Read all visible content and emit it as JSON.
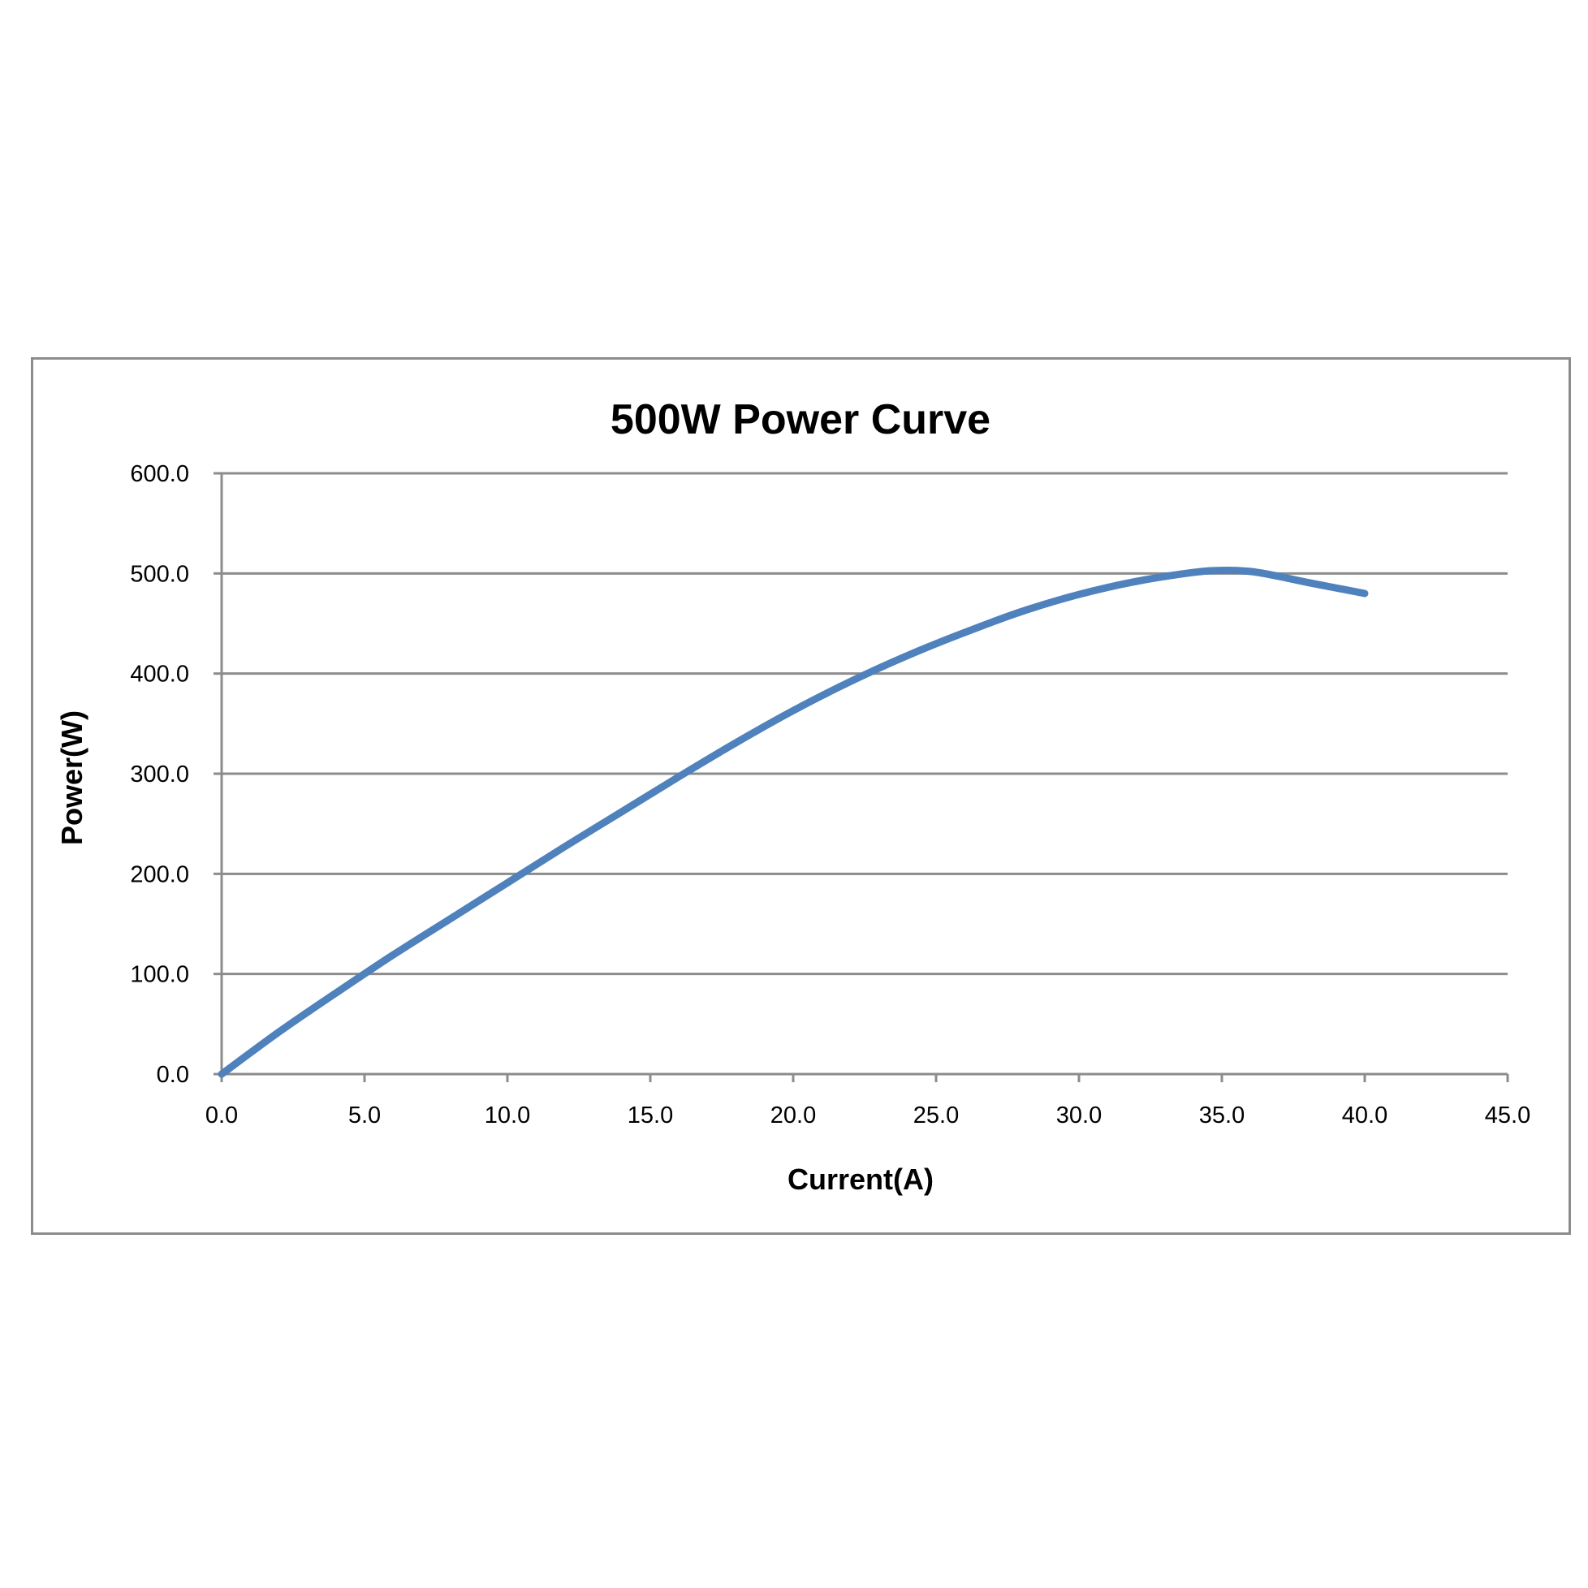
{
  "chart_data": {
    "type": "line",
    "title": "500W Power Curve",
    "xlabel": "Current(A)",
    "ylabel": "Power(W)",
    "xlim": [
      0,
      45
    ],
    "ylim": [
      0,
      600
    ],
    "x_ticks": [
      "0.0",
      "5.0",
      "10.0",
      "15.0",
      "20.0",
      "25.0",
      "30.0",
      "35.0",
      "40.0",
      "45.0"
    ],
    "y_ticks": [
      "0.0",
      "100.0",
      "200.0",
      "300.0",
      "400.0",
      "500.0",
      "600.0"
    ],
    "grid": "horizontal",
    "legend": "none",
    "series": [
      {
        "color": "#4f81bd",
        "x": [
          0,
          2,
          4,
          6,
          8,
          10,
          12,
          14,
          16,
          18,
          20,
          22,
          24,
          26,
          28,
          30,
          32,
          34,
          35,
          36,
          37,
          38,
          40
        ],
        "y": [
          0,
          42,
          81,
          119,
          155,
          191,
          227,
          262,
          297,
          331,
          363,
          392,
          418,
          441,
          462,
          479,
          492,
          501,
          503,
          502,
          497,
          491,
          480
        ]
      }
    ],
    "colors": {
      "line": "#4f81bd",
      "grid": "#8c8c8c",
      "frame": "#8c8c8c"
    }
  }
}
